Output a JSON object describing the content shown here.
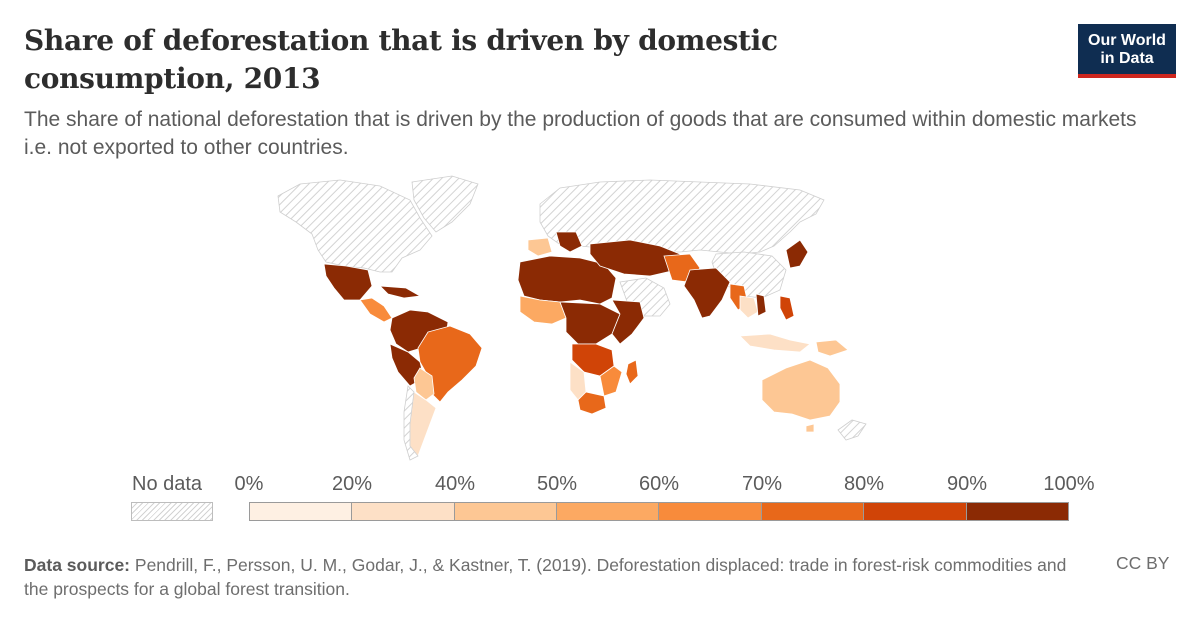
{
  "header": {
    "title": "Share of deforestation that is driven by domestic consumption, 2013",
    "subtitle": "The share of national deforestation that is driven by the production of goods that are consumed within domestic markets i.e. not exported to other countries.",
    "logo_line1": "Our World",
    "logo_line2": "in Data"
  },
  "colors": {
    "no_data_hatch": "#d3d3d3",
    "bins": [
      "#fef0e3",
      "#fde0c6",
      "#fdc794",
      "#fca962",
      "#f88b3b",
      "#e8681a",
      "#d04407",
      "#8b2a04"
    ]
  },
  "legend": {
    "no_data_label": "No data",
    "tick_labels": [
      "0%",
      "20%",
      "40%",
      "50%",
      "60%",
      "70%",
      "80%",
      "90%",
      "100%"
    ]
  },
  "footer": {
    "source_label": "Data source:",
    "source_text": "Pendrill, F., Persson, U. M., Godar, J., & Kastner, T. (2019). Deforestation displaced: trade in forest-risk commodities and the prospects for a global forest transition.",
    "license": "CC BY"
  }
}
